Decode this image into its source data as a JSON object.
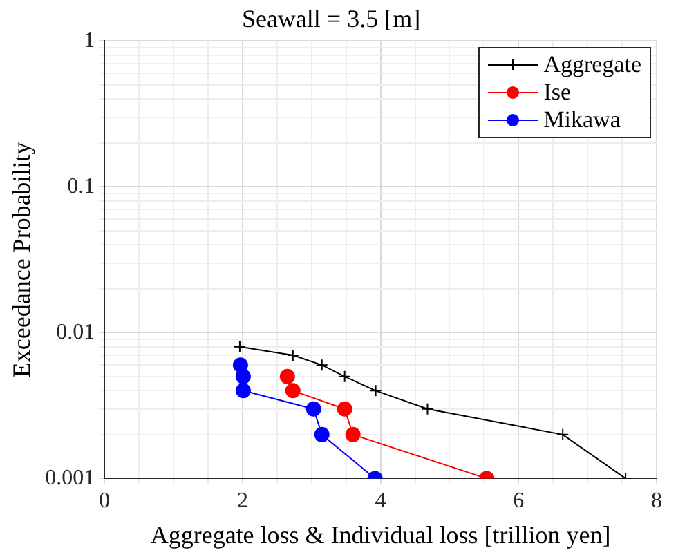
{
  "chart_data": {
    "type": "line",
    "title": "Seawall = 3.5 [m]",
    "xlabel": "Aggregate loss & Individual loss [trillion yen]",
    "ylabel": "Exceedance Probability",
    "xlim": [
      0,
      8
    ],
    "xticks": [
      0,
      {
        "value": 0.5,
        "label": null
      },
      {
        "value": 1,
        "label": null
      },
      {
        "value": 1.5,
        "label": null
      },
      2,
      {
        "value": 2.5,
        "label": null
      },
      {
        "value": 3,
        "label": null
      },
      {
        "value": 3.5,
        "label": null
      },
      4,
      {
        "value": 4.5,
        "label": null
      },
      {
        "value": 5,
        "label": null
      },
      {
        "value": 5.5,
        "label": null
      },
      6,
      {
        "value": 6.5,
        "label": null
      },
      {
        "value": 7,
        "label": null
      },
      {
        "value": 7.5,
        "label": null
      },
      8
    ],
    "ylim": [
      0.001,
      1
    ],
    "yticks": [
      0.001,
      {
        "value": 0.002,
        "label": null
      },
      {
        "value": 0.003,
        "label": null
      },
      {
        "value": 0.004,
        "label": null
      },
      {
        "value": 0.005,
        "label": null
      },
      {
        "value": 0.006,
        "label": null
      },
      {
        "value": 0.007,
        "label": null
      },
      {
        "value": 0.008,
        "label": null
      },
      {
        "value": 0.009,
        "label": null
      },
      0.01,
      {
        "value": 0.02,
        "label": null
      },
      {
        "value": 0.03,
        "label": null
      },
      {
        "value": 0.04,
        "label": null
      },
      {
        "value": 0.05,
        "label": null
      },
      {
        "value": 0.06,
        "label": null
      },
      {
        "value": 0.07,
        "label": null
      },
      {
        "value": 0.08,
        "label": null
      },
      {
        "value": 0.09,
        "label": null
      },
      0.1,
      {
        "value": 0.2,
        "label": null
      },
      {
        "value": 0.3,
        "label": null
      },
      {
        "value": 0.4,
        "label": null
      },
      {
        "value": 0.5,
        "label": null
      },
      {
        "value": 0.6,
        "label": null
      },
      {
        "value": 0.7,
        "label": null
      },
      {
        "value": 0.8,
        "label": null
      },
      {
        "value": 0.9,
        "label": null
      },
      1
    ],
    "log": "y",
    "grid": true,
    "legend": "top right",
    "line_style": "solid",
    "series": [
      {
        "name": "Aggregate",
        "color": "#000000",
        "marker": "cross",
        "x": [
          1.96,
          2.73,
          3.15,
          3.48,
          3.93,
          4.68,
          6.64,
          7.55
        ],
        "values": [
          0.008,
          0.007,
          0.006,
          0.005,
          0.004,
          0.003,
          0.002,
          0.001
        ]
      },
      {
        "name": "Ise",
        "color": "#ff0000",
        "marker": "circle",
        "x": [
          2.65,
          2.73,
          3.48,
          3.6,
          5.54
        ],
        "values": [
          0.005,
          0.004,
          0.003,
          0.002,
          0.001
        ]
      },
      {
        "name": "Mikawa",
        "color": "#0000ff",
        "marker": "circle",
        "x": [
          1.97,
          2.01,
          2.01,
          3.03,
          3.15,
          3.92
        ],
        "values": [
          0.006,
          0.005,
          0.004,
          0.003,
          0.002,
          0.001
        ]
      }
    ]
  }
}
